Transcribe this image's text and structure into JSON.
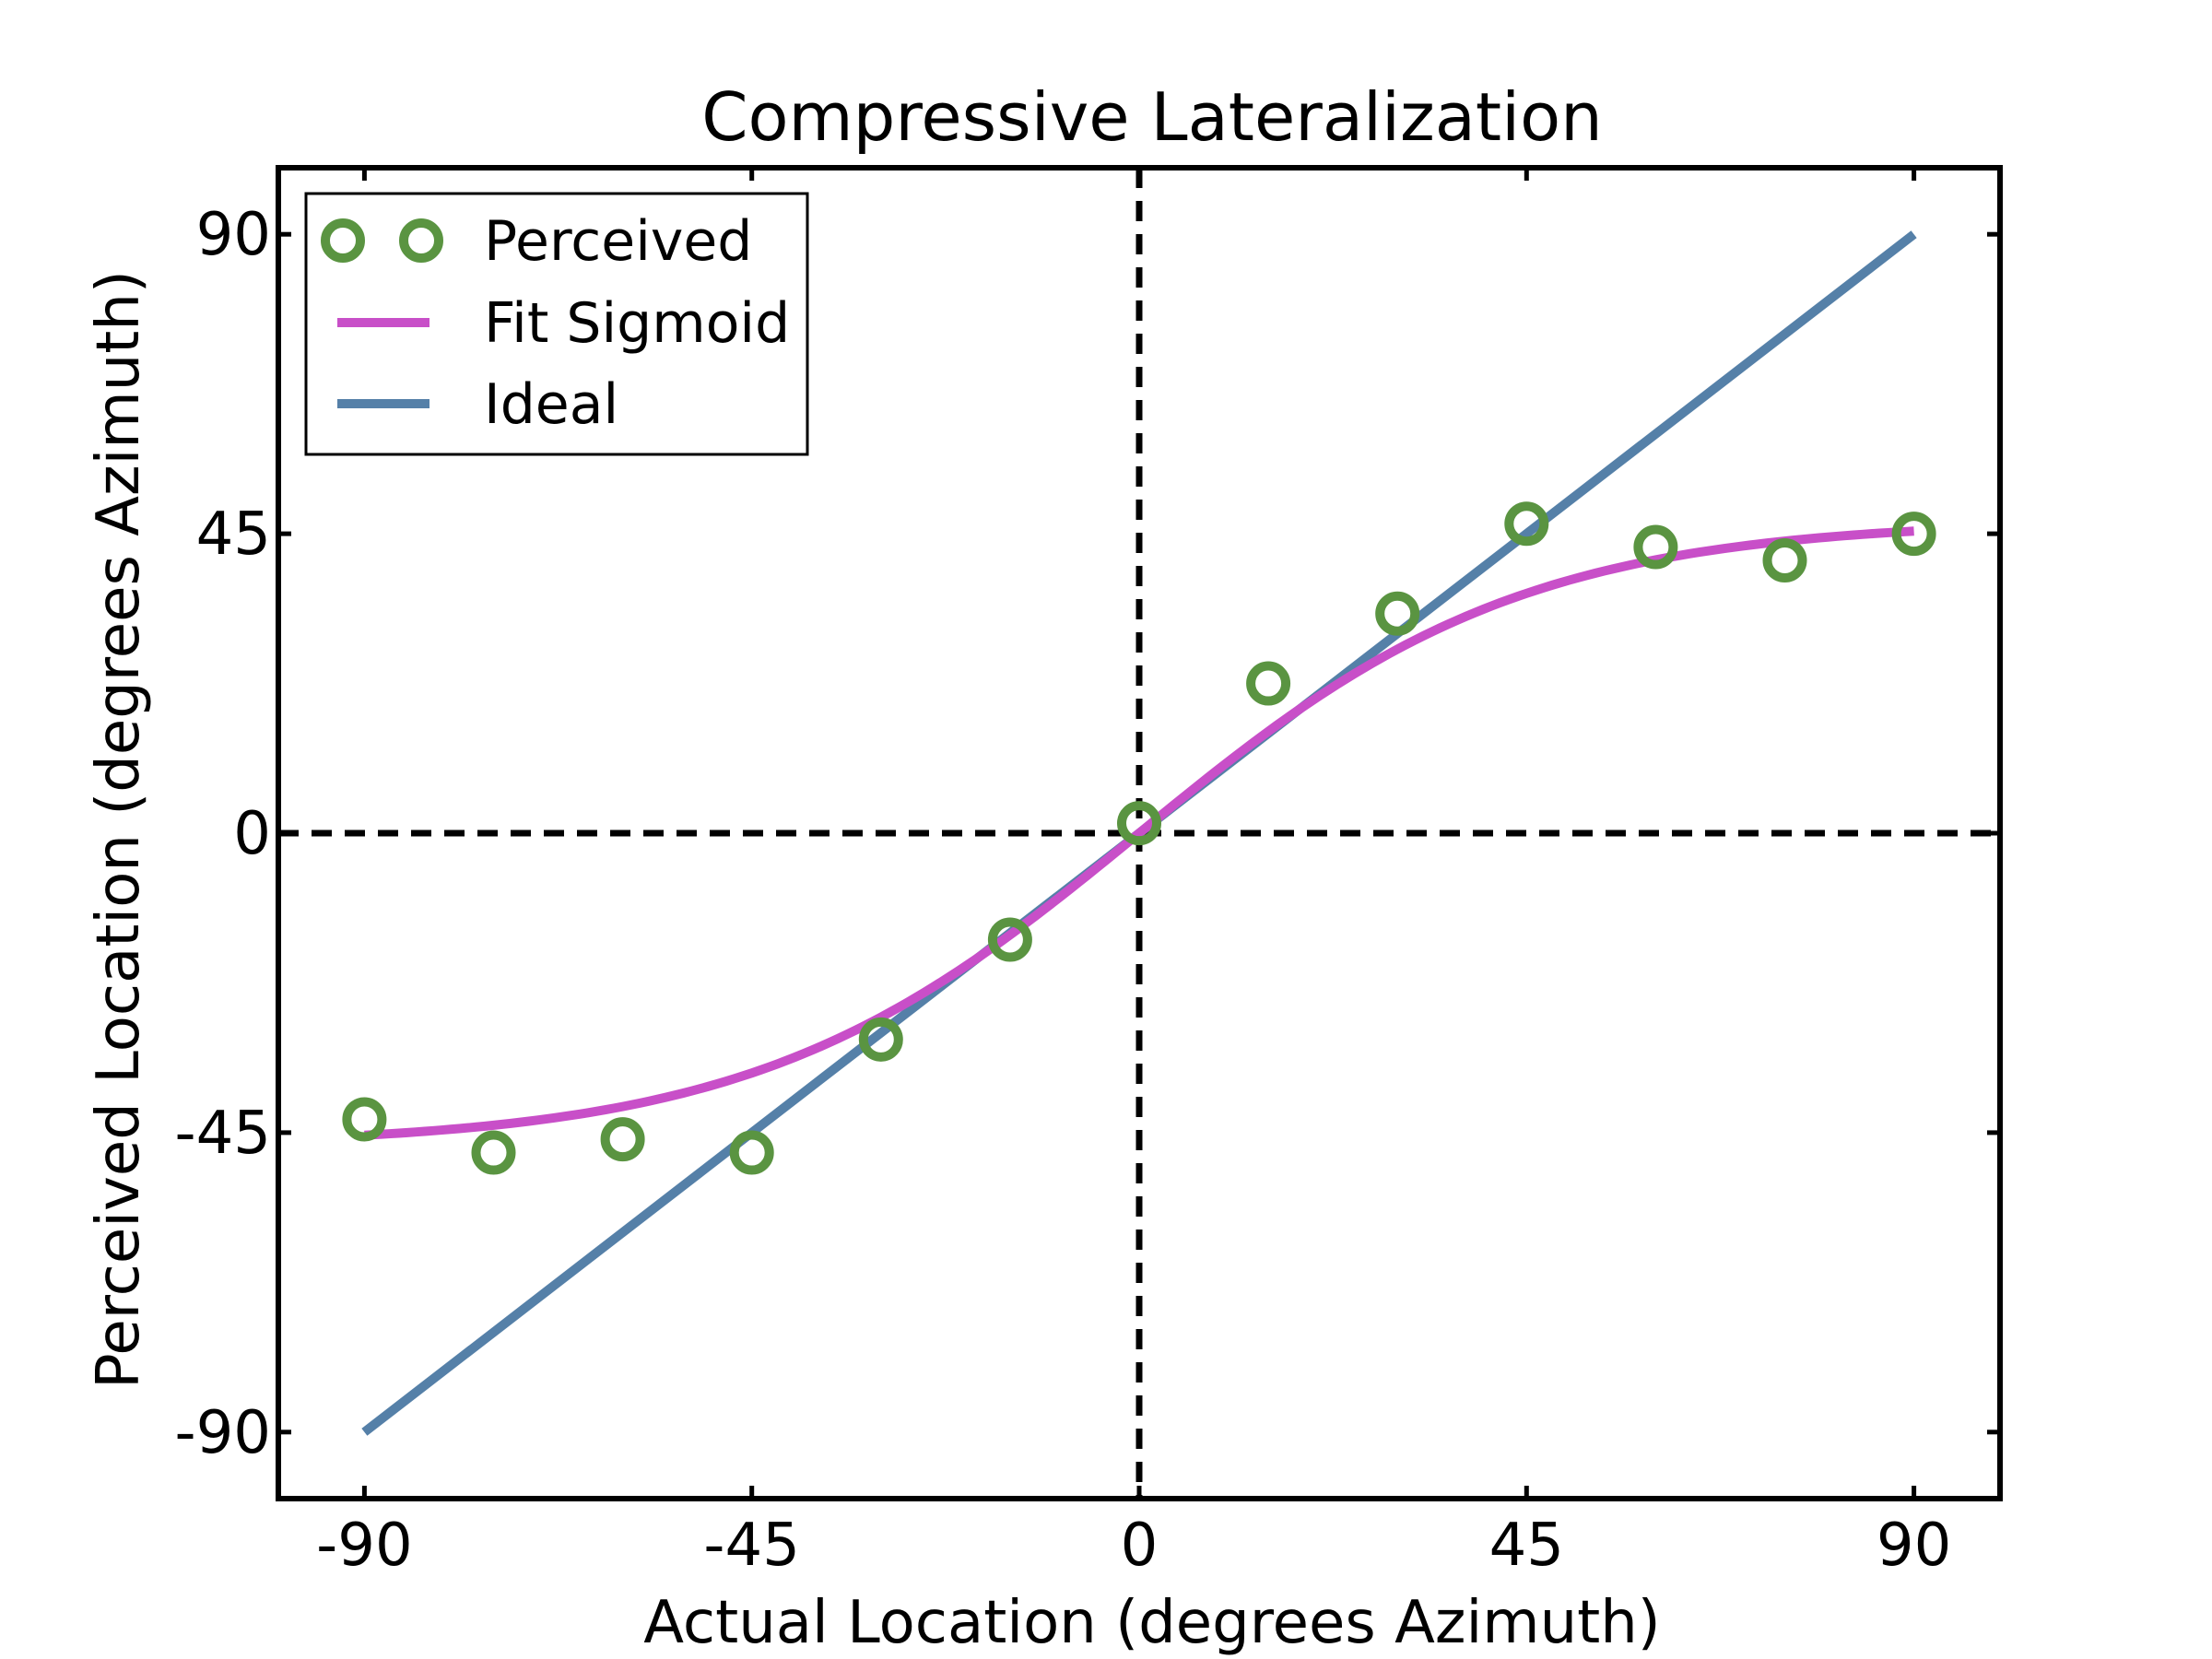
{
  "chart_data": {
    "type": "line",
    "title": "Compressive Lateralization",
    "xlabel": "Actual Location (degrees Azimuth)",
    "ylabel": "Perceived Location (degrees Azimuth)",
    "xlim": [
      -100,
      100
    ],
    "ylim": [
      -100,
      100
    ],
    "xticks": [
      -90,
      -45,
      0,
      45,
      90
    ],
    "yticks": [
      -90,
      -45,
      0,
      45,
      90
    ],
    "xtick_labels": [
      "-90",
      "-45",
      "0",
      "45",
      "90"
    ],
    "ytick_labels": [
      "-90",
      "-45",
      "0",
      "45",
      "90"
    ],
    "grid": false,
    "legend_position": "top-left",
    "reference_lines": [
      {
        "orientation": "vertical",
        "value": 0,
        "style": "dashed"
      },
      {
        "orientation": "horizontal",
        "value": 0,
        "style": "dashed"
      }
    ],
    "series": [
      {
        "name": "Perceived",
        "kind": "scatter",
        "marker": "open-circle",
        "color": "#5a9441",
        "x": [
          -90,
          -75,
          -60,
          -45,
          -30,
          -15,
          0,
          15,
          30,
          45,
          60,
          75,
          90
        ],
        "y": [
          -43,
          -48,
          -46,
          -48,
          -31,
          -16,
          1.5,
          22.5,
          33,
          46.5,
          43,
          41,
          45
        ]
      },
      {
        "name": "Fit Sigmoid",
        "kind": "line",
        "color": "#c84fc8",
        "function": "sigmoid",
        "params": {
          "amplitude": 47,
          "slope": 0.045
        },
        "x_range": [
          -90,
          90
        ]
      },
      {
        "name": "Ideal",
        "kind": "line",
        "color": "#5580a8",
        "x": [
          -90,
          90
        ],
        "y": [
          -90,
          90
        ]
      }
    ]
  }
}
